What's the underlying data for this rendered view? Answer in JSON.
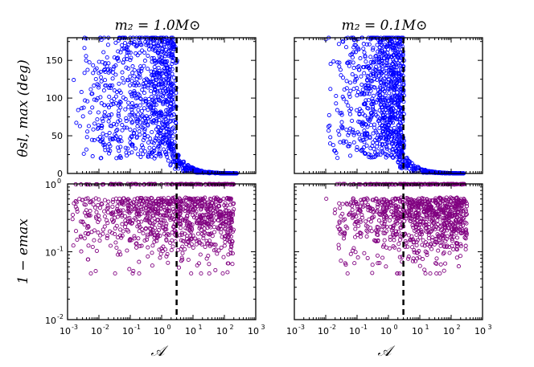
{
  "chart_data": [
    {
      "type": "scatter",
      "panel": "top-left",
      "title": "m₂ = 1.0M⊙",
      "ylabel": "θsl, max (deg)",
      "xscale": "log",
      "xlim": [
        0.001,
        1000
      ],
      "ylim": [
        0,
        180
      ],
      "yticks": [
        0,
        50,
        100,
        150
      ],
      "marker_color": "#0000ff",
      "vline_x": 3.0,
      "series": [
        {
          "name": "theta_sl_max",
          "count": 1100,
          "note": "scatter of points, bounded above by 180 deg; declines sharply for A > 3"
        }
      ]
    },
    {
      "type": "scatter",
      "panel": "top-right",
      "title": "m₂ = 0.1M⊙",
      "ylabel": "",
      "xscale": "log",
      "xlim": [
        0.001,
        1000
      ],
      "ylim": [
        0,
        180
      ],
      "yticks": [
        0,
        50,
        100,
        150
      ],
      "marker_color": "#0000ff",
      "vline_x": 3.0,
      "series": [
        {
          "name": "theta_sl_max",
          "count": 1100
        }
      ]
    },
    {
      "type": "scatter",
      "panel": "bottom-left",
      "ylabel": "1 − emax",
      "xlabel": "𝒜",
      "xscale": "log",
      "yscale": "log",
      "xlim": [
        0.001,
        1000
      ],
      "ylim": [
        0.01,
        1
      ],
      "marker_color": "#800080",
      "vline_x": 3.0,
      "series": [
        {
          "name": "one_minus_e_max",
          "count": 1000
        }
      ]
    },
    {
      "type": "scatter",
      "panel": "bottom-right",
      "ylabel": "",
      "xlabel": "𝒜",
      "xscale": "log",
      "yscale": "log",
      "xlim": [
        0.001,
        1000
      ],
      "ylim": [
        0.01,
        1
      ],
      "marker_color": "#800080",
      "vline_x": 3.0,
      "series": [
        {
          "name": "one_minus_e_max",
          "count": 1000
        }
      ]
    }
  ],
  "labels": {
    "title_left": "m₂ = 1.0M⊙",
    "title_right": "m₂ = 0.1M⊙",
    "ylabel_top": "θsl, max (deg)",
    "ylabel_bottom": "1 − emax",
    "xlabel": "𝒜",
    "y_top_ticks": [
      "0",
      "50",
      "100",
      "150"
    ],
    "y_bot_ticks": [
      "10",
      "10",
      "10"
    ],
    "y_bot_exps": [
      "-2",
      "-1",
      "0"
    ],
    "x_ticks": [
      "10",
      "10",
      "10",
      "10",
      "10",
      "10",
      "10"
    ],
    "x_exps": [
      "-3",
      "-2",
      "-1",
      "0",
      "1",
      "2",
      "3"
    ]
  }
}
